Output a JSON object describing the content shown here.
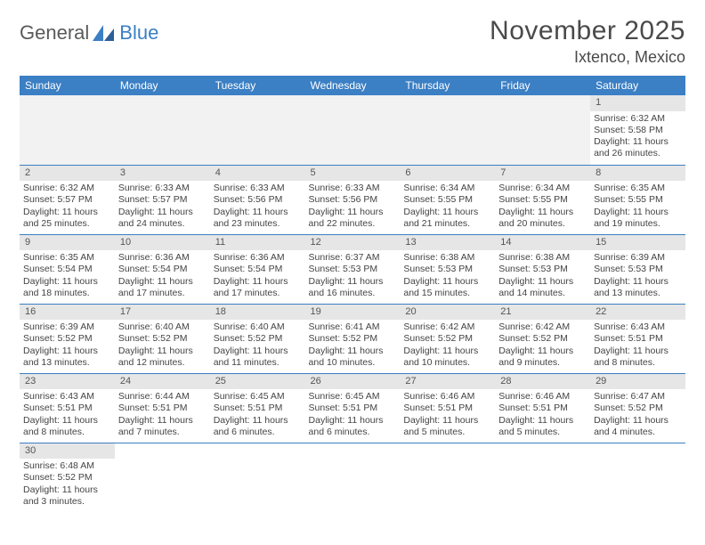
{
  "brand": {
    "part1": "General",
    "part2": "Blue"
  },
  "title": "November 2025",
  "location": "Ixtenco, Mexico",
  "colors": {
    "header_bg": "#3b7fc4",
    "header_text": "#ffffff",
    "daynum_bg": "#e6e6e6",
    "border": "#3b7fc4",
    "text": "#444444"
  },
  "weekdays": [
    "Sunday",
    "Monday",
    "Tuesday",
    "Wednesday",
    "Thursday",
    "Friday",
    "Saturday"
  ],
  "weeks": [
    [
      null,
      null,
      null,
      null,
      null,
      null,
      {
        "n": "1",
        "sunrise": "Sunrise: 6:32 AM",
        "sunset": "Sunset: 5:58 PM",
        "daylight": "Daylight: 11 hours and 26 minutes."
      }
    ],
    [
      {
        "n": "2",
        "sunrise": "Sunrise: 6:32 AM",
        "sunset": "Sunset: 5:57 PM",
        "daylight": "Daylight: 11 hours and 25 minutes."
      },
      {
        "n": "3",
        "sunrise": "Sunrise: 6:33 AM",
        "sunset": "Sunset: 5:57 PM",
        "daylight": "Daylight: 11 hours and 24 minutes."
      },
      {
        "n": "4",
        "sunrise": "Sunrise: 6:33 AM",
        "sunset": "Sunset: 5:56 PM",
        "daylight": "Daylight: 11 hours and 23 minutes."
      },
      {
        "n": "5",
        "sunrise": "Sunrise: 6:33 AM",
        "sunset": "Sunset: 5:56 PM",
        "daylight": "Daylight: 11 hours and 22 minutes."
      },
      {
        "n": "6",
        "sunrise": "Sunrise: 6:34 AM",
        "sunset": "Sunset: 5:55 PM",
        "daylight": "Daylight: 11 hours and 21 minutes."
      },
      {
        "n": "7",
        "sunrise": "Sunrise: 6:34 AM",
        "sunset": "Sunset: 5:55 PM",
        "daylight": "Daylight: 11 hours and 20 minutes."
      },
      {
        "n": "8",
        "sunrise": "Sunrise: 6:35 AM",
        "sunset": "Sunset: 5:55 PM",
        "daylight": "Daylight: 11 hours and 19 minutes."
      }
    ],
    [
      {
        "n": "9",
        "sunrise": "Sunrise: 6:35 AM",
        "sunset": "Sunset: 5:54 PM",
        "daylight": "Daylight: 11 hours and 18 minutes."
      },
      {
        "n": "10",
        "sunrise": "Sunrise: 6:36 AM",
        "sunset": "Sunset: 5:54 PM",
        "daylight": "Daylight: 11 hours and 17 minutes."
      },
      {
        "n": "11",
        "sunrise": "Sunrise: 6:36 AM",
        "sunset": "Sunset: 5:54 PM",
        "daylight": "Daylight: 11 hours and 17 minutes."
      },
      {
        "n": "12",
        "sunrise": "Sunrise: 6:37 AM",
        "sunset": "Sunset: 5:53 PM",
        "daylight": "Daylight: 11 hours and 16 minutes."
      },
      {
        "n": "13",
        "sunrise": "Sunrise: 6:38 AM",
        "sunset": "Sunset: 5:53 PM",
        "daylight": "Daylight: 11 hours and 15 minutes."
      },
      {
        "n": "14",
        "sunrise": "Sunrise: 6:38 AM",
        "sunset": "Sunset: 5:53 PM",
        "daylight": "Daylight: 11 hours and 14 minutes."
      },
      {
        "n": "15",
        "sunrise": "Sunrise: 6:39 AM",
        "sunset": "Sunset: 5:53 PM",
        "daylight": "Daylight: 11 hours and 13 minutes."
      }
    ],
    [
      {
        "n": "16",
        "sunrise": "Sunrise: 6:39 AM",
        "sunset": "Sunset: 5:52 PM",
        "daylight": "Daylight: 11 hours and 13 minutes."
      },
      {
        "n": "17",
        "sunrise": "Sunrise: 6:40 AM",
        "sunset": "Sunset: 5:52 PM",
        "daylight": "Daylight: 11 hours and 12 minutes."
      },
      {
        "n": "18",
        "sunrise": "Sunrise: 6:40 AM",
        "sunset": "Sunset: 5:52 PM",
        "daylight": "Daylight: 11 hours and 11 minutes."
      },
      {
        "n": "19",
        "sunrise": "Sunrise: 6:41 AM",
        "sunset": "Sunset: 5:52 PM",
        "daylight": "Daylight: 11 hours and 10 minutes."
      },
      {
        "n": "20",
        "sunrise": "Sunrise: 6:42 AM",
        "sunset": "Sunset: 5:52 PM",
        "daylight": "Daylight: 11 hours and 10 minutes."
      },
      {
        "n": "21",
        "sunrise": "Sunrise: 6:42 AM",
        "sunset": "Sunset: 5:52 PM",
        "daylight": "Daylight: 11 hours and 9 minutes."
      },
      {
        "n": "22",
        "sunrise": "Sunrise: 6:43 AM",
        "sunset": "Sunset: 5:51 PM",
        "daylight": "Daylight: 11 hours and 8 minutes."
      }
    ],
    [
      {
        "n": "23",
        "sunrise": "Sunrise: 6:43 AM",
        "sunset": "Sunset: 5:51 PM",
        "daylight": "Daylight: 11 hours and 8 minutes."
      },
      {
        "n": "24",
        "sunrise": "Sunrise: 6:44 AM",
        "sunset": "Sunset: 5:51 PM",
        "daylight": "Daylight: 11 hours and 7 minutes."
      },
      {
        "n": "25",
        "sunrise": "Sunrise: 6:45 AM",
        "sunset": "Sunset: 5:51 PM",
        "daylight": "Daylight: 11 hours and 6 minutes."
      },
      {
        "n": "26",
        "sunrise": "Sunrise: 6:45 AM",
        "sunset": "Sunset: 5:51 PM",
        "daylight": "Daylight: 11 hours and 6 minutes."
      },
      {
        "n": "27",
        "sunrise": "Sunrise: 6:46 AM",
        "sunset": "Sunset: 5:51 PM",
        "daylight": "Daylight: 11 hours and 5 minutes."
      },
      {
        "n": "28",
        "sunrise": "Sunrise: 6:46 AM",
        "sunset": "Sunset: 5:51 PM",
        "daylight": "Daylight: 11 hours and 5 minutes."
      },
      {
        "n": "29",
        "sunrise": "Sunrise: 6:47 AM",
        "sunset": "Sunset: 5:52 PM",
        "daylight": "Daylight: 11 hours and 4 minutes."
      }
    ],
    [
      {
        "n": "30",
        "sunrise": "Sunrise: 6:48 AM",
        "sunset": "Sunset: 5:52 PM",
        "daylight": "Daylight: 11 hours and 3 minutes."
      },
      null,
      null,
      null,
      null,
      null,
      null
    ]
  ]
}
